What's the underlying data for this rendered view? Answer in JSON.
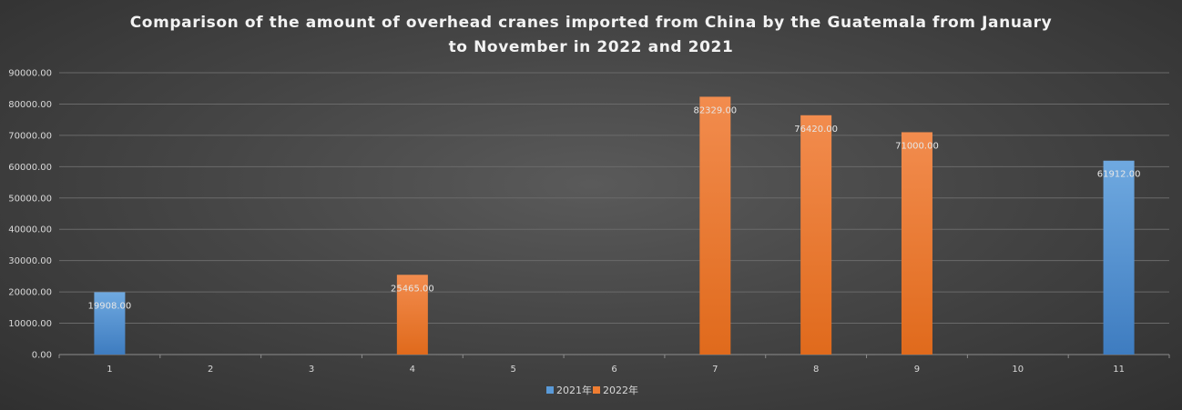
{
  "chart_data": {
    "type": "bar",
    "title_lines": [
      "Comparison of the amount of overhead cranes imported from China by the Guatemala from January",
      "to November in 2022 and 2021"
    ],
    "categories": [
      "1",
      "2",
      "3",
      "4",
      "5",
      "6",
      "7",
      "8",
      "9",
      "10",
      "11"
    ],
    "series": [
      {
        "name": "2021年",
        "color": "#4f8fd0",
        "values": [
          19908,
          null,
          null,
          null,
          null,
          null,
          null,
          null,
          null,
          null,
          61912
        ]
      },
      {
        "name": "2022年",
        "color": "#ee7a2e",
        "values": [
          null,
          null,
          null,
          25465,
          null,
          null,
          82329,
          76420,
          71000,
          null,
          null
        ]
      }
    ],
    "data_labels": [
      {
        "category": "1",
        "series": "2021年",
        "text": "19908.00"
      },
      {
        "category": "4",
        "series": "2022年",
        "text": "25465.00"
      },
      {
        "category": "7",
        "series": "2022年",
        "text": "82329.00"
      },
      {
        "category": "8",
        "series": "2022年",
        "text": "76420.00"
      },
      {
        "category": "9",
        "series": "2022年",
        "text": "71000.00"
      },
      {
        "category": "11",
        "series": "2021年",
        "text": "61912.00"
      }
    ],
    "y_ticks": [
      "0.00",
      "10000.00",
      "20000.00",
      "30000.00",
      "40000.00",
      "50000.00",
      "60000.00",
      "70000.00",
      "80000.00",
      "90000.00"
    ],
    "ylim": [
      0,
      90000
    ],
    "xlabel": "",
    "ylabel": "",
    "grid": true,
    "legend_position": "bottom"
  }
}
